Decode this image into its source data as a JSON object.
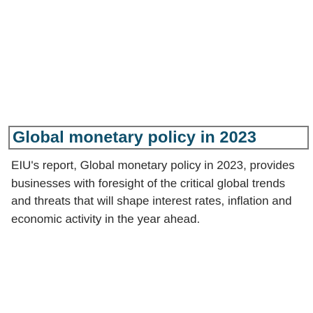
{
  "article": {
    "title": "Global monetary policy in 2023",
    "description": "EIU's report, Global monetary policy in 2023, provides businesses with foresight of the critical global trends and threats that will shape interest rates, inflation and economic activity in the year ahead."
  },
  "colors": {
    "title": "#0f4f6b",
    "body_text": "#2b2b2b",
    "focus_border": "#7a7a7a",
    "background": "#ffffff"
  }
}
